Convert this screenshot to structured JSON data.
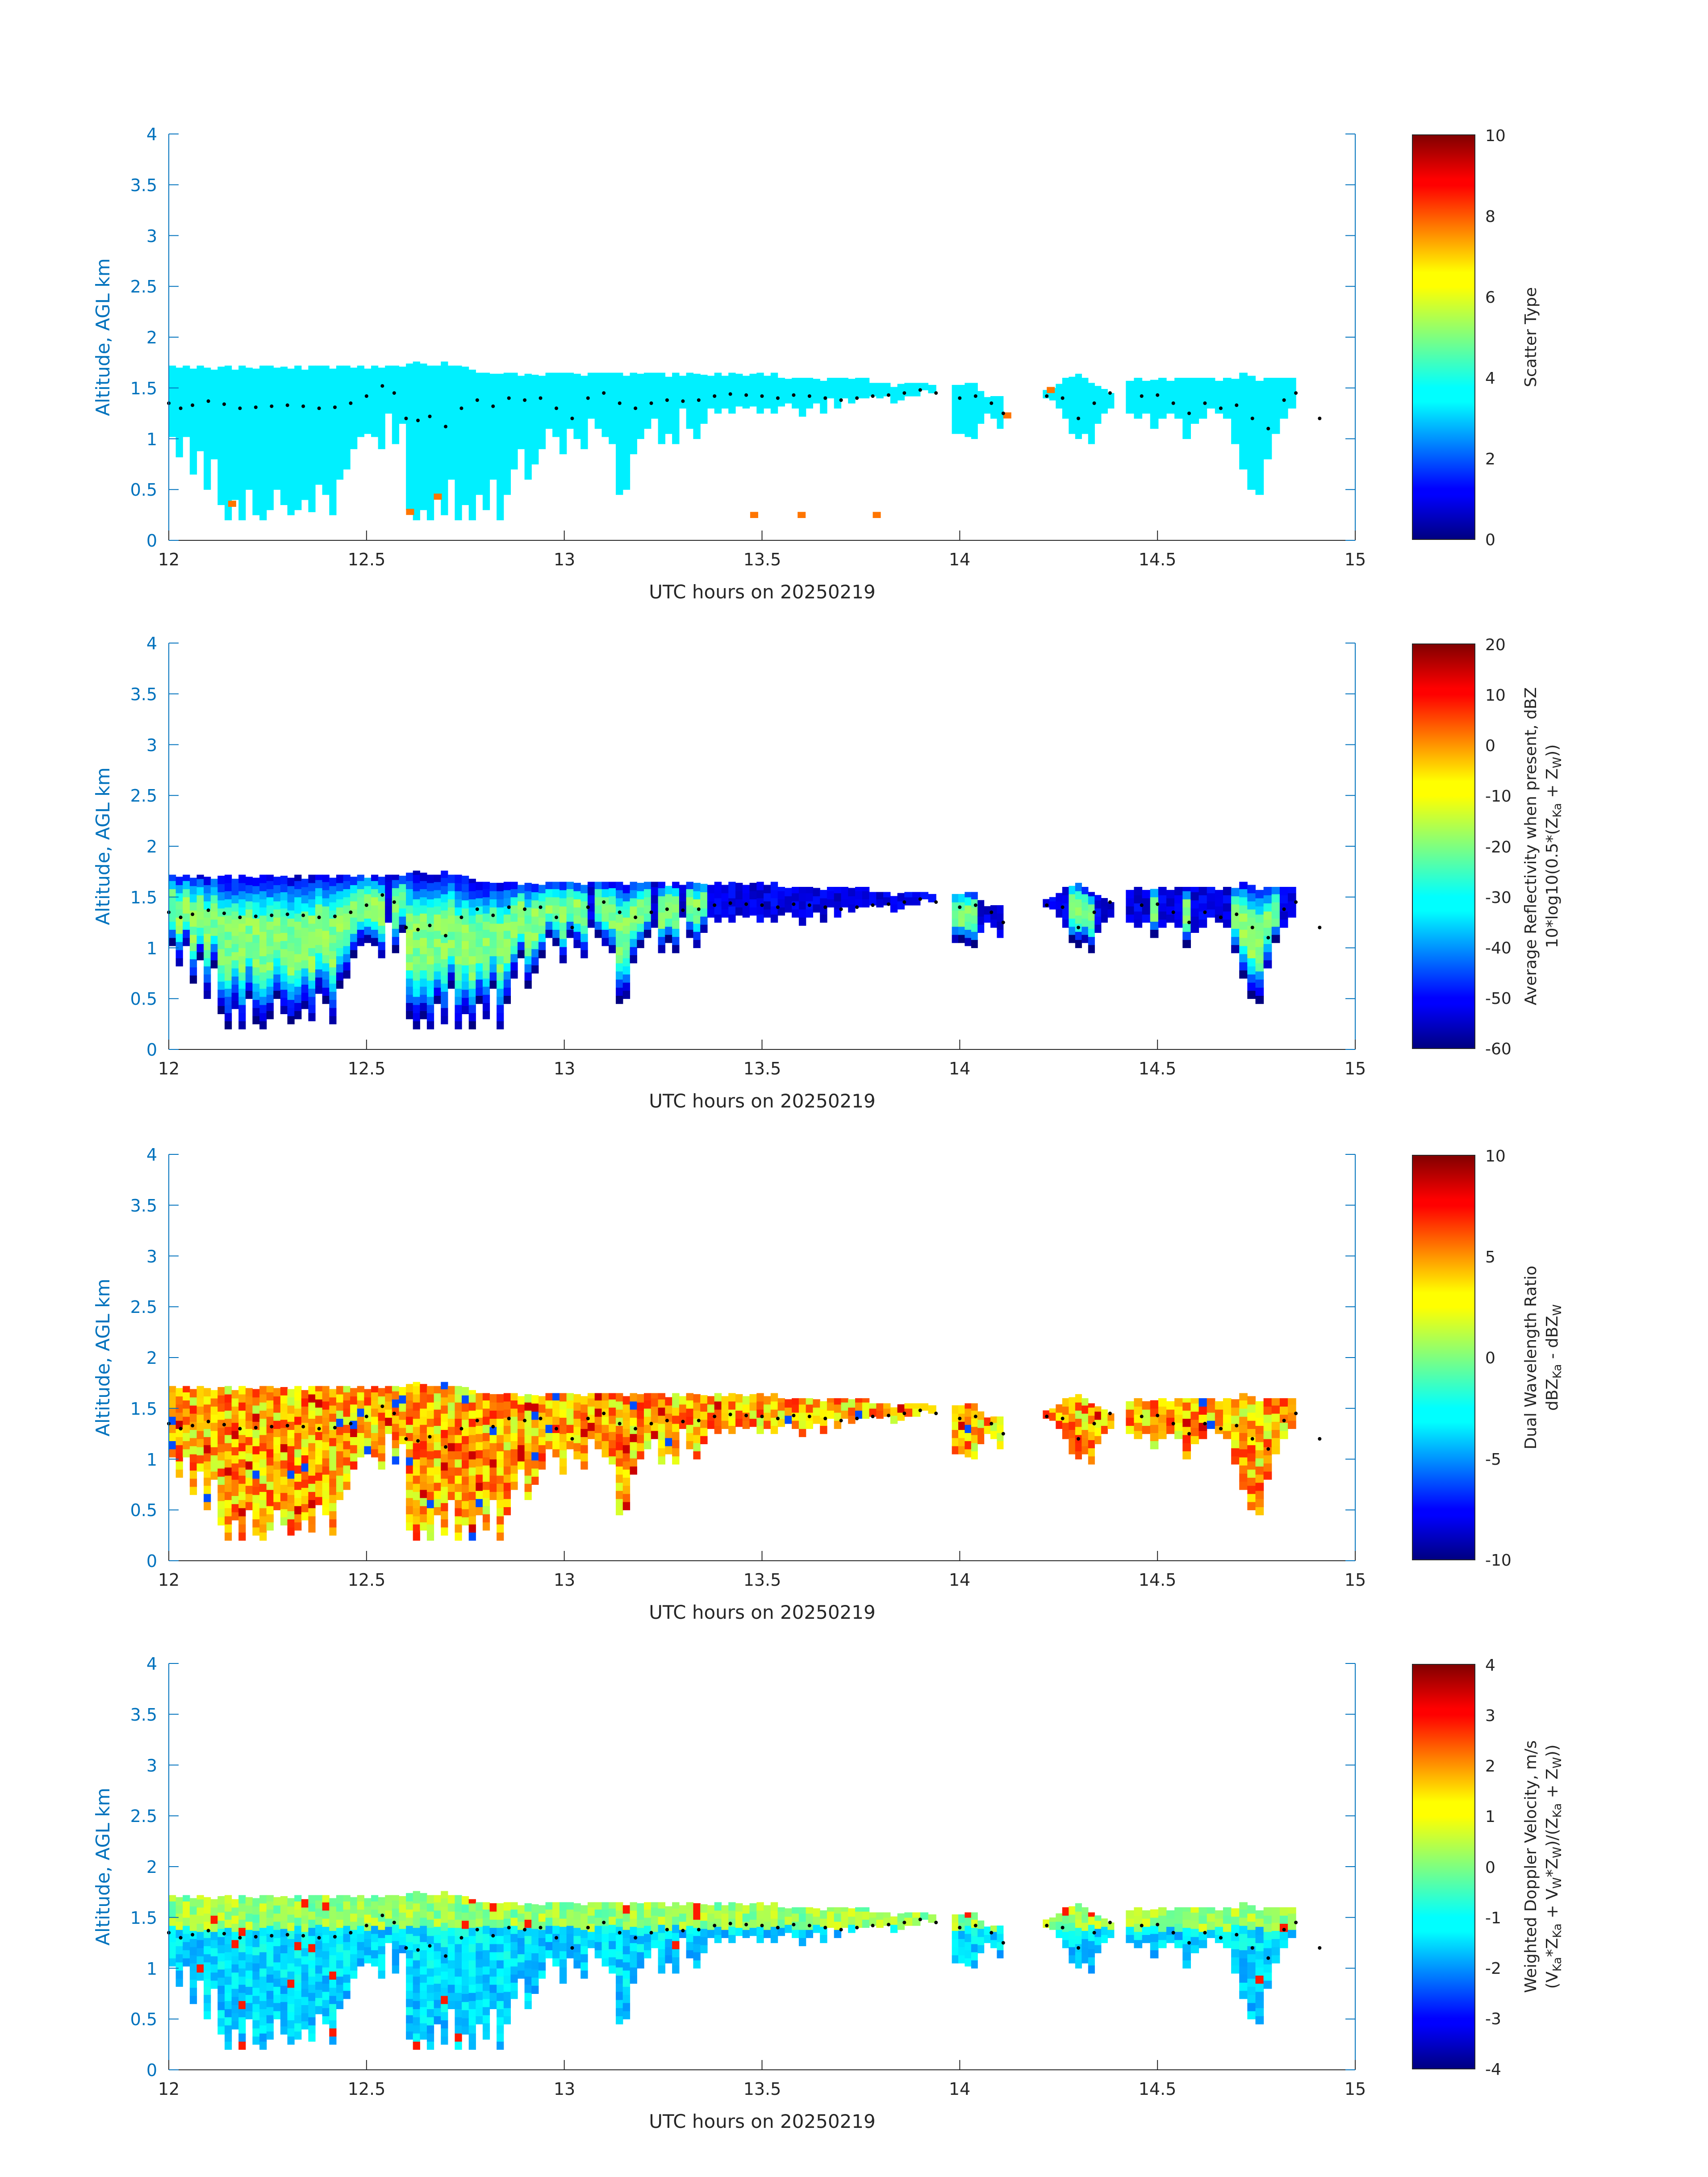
{
  "figure": {
    "xlabel": "UTC hours on 20250219",
    "ylabel": "Altitude, AGL km",
    "x_ticks": [
      "12",
      "12.5",
      "13",
      "13.5",
      "14",
      "14.5",
      "15"
    ],
    "y_ticks": [
      "0",
      "0.5",
      "1",
      "1.5",
      "2",
      "2.5",
      "3",
      "3.5",
      "4"
    ],
    "cb_labels": {
      "p1": "Scatter Type",
      "p2a": "Average Reflectivity when present, dBZ",
      "p2b_1": "10*log10(0.5*(Z",
      "p2b_2": "Ka",
      "p2b_3": " + Z",
      "p2b_4": "W",
      "p2b_5": "))",
      "p3a": "Dual Wavelength Ratio",
      "p3b_1": "dBZ",
      "p3b_2": "Ka",
      "p3b_3": " - dBZ",
      "p3b_4": "W",
      "p4a": "Weighted Doppler Velocity, m/s",
      "p4b_1": "(V",
      "p4b_2": "Ka",
      "p4b_3": "*Z",
      "p4b_4": "Ka",
      "p4b_5": " + V",
      "p4b_6": "W",
      "p4b_7": "*Z",
      "p4b_8": "W",
      "p4b_9": ")/(Z",
      "p4b_10": "Ka",
      "p4b_11": " + Z",
      "p4b_12": "W",
      "p4b_13": "))"
    }
  },
  "chart_data": [
    {
      "type": "heatmap",
      "panel": 1,
      "xlabel": "UTC hours on 20250219",
      "ylabel": "Altitude, AGL km",
      "xlim": [
        12,
        15
      ],
      "ylim": [
        0,
        4
      ],
      "colorbar": {
        "label": "Scatter Type",
        "range": [
          0,
          10
        ],
        "ticks": [
          "0",
          "2",
          "4",
          "6",
          "8",
          "10"
        ]
      },
      "dominant_value": 3.6,
      "occasional_value": 7.6,
      "occasional_value_points": [
        [
          12.15,
          0.33
        ],
        [
          12.6,
          0.25
        ],
        [
          12.67,
          0.4
        ],
        [
          13.47,
          0.22
        ],
        [
          13.59,
          0.22
        ],
        [
          13.78,
          0.22
        ],
        [
          14.11,
          1.2
        ],
        [
          14.22,
          1.45
        ]
      ]
    },
    {
      "type": "heatmap",
      "panel": 2,
      "xlabel": "UTC hours on 20250219",
      "ylabel": "Altitude, AGL km",
      "xlim": [
        12,
        15
      ],
      "ylim": [
        0,
        4
      ],
      "colorbar": {
        "range": [
          -60,
          20
        ],
        "ticks": [
          "-60",
          "-50",
          "-40",
          "-30",
          "-20",
          "-10",
          "0",
          "10",
          "20"
        ]
      },
      "value_range_observed": [
        -58,
        -18
      ]
    },
    {
      "type": "heatmap",
      "panel": 3,
      "xlabel": "UTC hours on 20250219",
      "ylabel": "Altitude, AGL km",
      "xlim": [
        12,
        15
      ],
      "ylim": [
        0,
        4
      ],
      "colorbar": {
        "range": [
          -10,
          10
        ],
        "ticks": [
          "-10",
          "-5",
          "0",
          "5",
          "10"
        ]
      },
      "value_range_observed": [
        -6,
        9
      ]
    },
    {
      "type": "heatmap",
      "panel": 4,
      "xlabel": "UTC hours on 20250219",
      "ylabel": "Altitude, AGL km",
      "xlim": [
        12,
        15
      ],
      "ylim": [
        0,
        4
      ],
      "colorbar": {
        "range": [
          -4,
          4
        ],
        "ticks": [
          "-4",
          "-3",
          "-2",
          "-1",
          "0",
          "1",
          "2",
          "3",
          "4"
        ]
      },
      "value_range_observed": [
        -2.5,
        3
      ]
    }
  ],
  "profile": {
    "segments": [
      {
        "x_start": 12.0,
        "x_end": 12.97,
        "top": 1.72,
        "bottoms": [
          1.02,
          0.82,
          1.02,
          0.65,
          0.88,
          0.5,
          0.8,
          0.35,
          0.2,
          0.4,
          0.2,
          0.5,
          0.25,
          0.2,
          0.3,
          0.5,
          0.35,
          0.25,
          0.3,
          0.4,
          0.28,
          0.55,
          0.45,
          0.25,
          0.6,
          0.7,
          0.9,
          1.02,
          1.05,
          1.02,
          0.9,
          1.25,
          0.95,
          1.15,
          0.3,
          0.2,
          0.3,
          0.2,
          0.45,
          0.25,
          0.6,
          0.2,
          0.35,
          0.2,
          0.45,
          0.3,
          0.6,
          0.2,
          0.45,
          0.7,
          0.9,
          0.6,
          0.75,
          0.9,
          1.1
        ],
        "tops": [
          1.72,
          1.72,
          1.72,
          1.72,
          1.72,
          1.72,
          1.72,
          1.72,
          1.72,
          1.72,
          1.72,
          1.72,
          1.72,
          1.72,
          1.72,
          1.72,
          1.72,
          1.72,
          1.72,
          1.72,
          1.72,
          1.72,
          1.72,
          1.72,
          1.72,
          1.72,
          1.72,
          1.72,
          1.72,
          1.72,
          1.72,
          1.72,
          1.72,
          1.72,
          1.76,
          1.76,
          1.76,
          1.72,
          1.72,
          1.76,
          1.72,
          1.72,
          1.72,
          1.68,
          1.65,
          1.65,
          1.65,
          1.65,
          1.65,
          1.65,
          1.65,
          1.65,
          1.65,
          1.65,
          1.65
        ]
      },
      {
        "x_start": 12.97,
        "x_end": 13.86,
        "top": 1.65,
        "bottoms": [
          1.02,
          0.85,
          1.1,
          1.0,
          0.9,
          1.2,
          1.1,
          1.02,
          0.95,
          0.45,
          0.5,
          0.85,
          1.0,
          1.1,
          1.2,
          0.95,
          1.05,
          0.95,
          1.3,
          1.1,
          1.0,
          1.15,
          1.3,
          1.25,
          1.3,
          1.25,
          1.32,
          1.3,
          1.32,
          1.25,
          1.3,
          1.25,
          1.32,
          1.35,
          1.3,
          1.22,
          1.3,
          1.35,
          1.25,
          1.4,
          1.3,
          1.4,
          1.35,
          1.4,
          1.4,
          1.42,
          1.4,
          1.42,
          1.35,
          1.38
        ],
        "tops": [
          1.65,
          1.65,
          1.65,
          1.65,
          1.65,
          1.65,
          1.65,
          1.65,
          1.65,
          1.65,
          1.65,
          1.65,
          1.65,
          1.65,
          1.65,
          1.65,
          1.65,
          1.65,
          1.65,
          1.65,
          1.65,
          1.65,
          1.65,
          1.65,
          1.65,
          1.65,
          1.65,
          1.65,
          1.65,
          1.65,
          1.65,
          1.65,
          1.6,
          1.6,
          1.6,
          1.6,
          1.6,
          1.6,
          1.6,
          1.6,
          1.6,
          1.6,
          1.6,
          1.6,
          1.6,
          1.55,
          1.55,
          1.55,
          1.55,
          1.55
        ]
      },
      {
        "x_start": 13.86,
        "x_end": 13.94,
        "top": 1.55,
        "bottoms": [
          1.42,
          1.42,
          1.48,
          1.45
        ],
        "tops": [
          1.55,
          1.55,
          1.55,
          1.55
        ]
      },
      {
        "x_start": 13.98,
        "x_end": 14.11,
        "top": 1.55,
        "bottoms": [
          1.05,
          1.05,
          1.02,
          1.0,
          1.15,
          1.25,
          1.2,
          1.1
        ],
        "tops": [
          1.55,
          1.55,
          1.55,
          1.55,
          1.5,
          1.42,
          1.42,
          1.42
        ]
      },
      {
        "x_start": 14.21,
        "x_end": 14.39,
        "top": 1.65,
        "bottoms": [
          1.4,
          1.38,
          1.3,
          1.2,
          1.05,
          1.0,
          1.05,
          0.95,
          1.15,
          1.25,
          1.3
        ],
        "tops": [
          1.5,
          1.5,
          1.55,
          1.6,
          1.65,
          1.65,
          1.6,
          1.55,
          1.52,
          1.5,
          1.45
        ]
      },
      {
        "x_start": 14.42,
        "x_end": 14.85,
        "top": 1.65,
        "bottoms": [
          1.25,
          1.2,
          1.25,
          1.1,
          1.2,
          1.25,
          1.2,
          1.0,
          1.15,
          1.2,
          1.3,
          1.25,
          1.2,
          0.95,
          0.7,
          0.5,
          0.45,
          0.8,
          1.05,
          1.2,
          1.3
        ],
        "tops": [
          1.6,
          1.6,
          1.6,
          1.6,
          1.6,
          1.6,
          1.6,
          1.6,
          1.6,
          1.6,
          1.6,
          1.6,
          1.6,
          1.6,
          1.65,
          1.65,
          1.6,
          1.6,
          1.6,
          1.6,
          1.6
        ]
      }
    ],
    "melting_layer": [
      [
        12.0,
        1.35
      ],
      [
        12.03,
        1.3
      ],
      [
        12.06,
        1.33
      ],
      [
        12.1,
        1.37
      ],
      [
        12.14,
        1.34
      ],
      [
        12.18,
        1.3
      ],
      [
        12.22,
        1.31
      ],
      [
        12.26,
        1.32
      ],
      [
        12.3,
        1.33
      ],
      [
        12.34,
        1.32
      ],
      [
        12.38,
        1.3
      ],
      [
        12.42,
        1.31
      ],
      [
        12.46,
        1.35
      ],
      [
        12.5,
        1.42
      ],
      [
        12.54,
        1.52
      ],
      [
        12.57,
        1.45
      ],
      [
        12.6,
        1.2
      ],
      [
        12.63,
        1.18
      ],
      [
        12.66,
        1.22
      ],
      [
        12.7,
        1.12
      ],
      [
        12.74,
        1.3
      ],
      [
        12.78,
        1.38
      ],
      [
        12.82,
        1.32
      ],
      [
        12.86,
        1.4
      ],
      [
        12.9,
        1.38
      ],
      [
        12.94,
        1.4
      ],
      [
        12.98,
        1.3
      ],
      [
        13.02,
        1.2
      ],
      [
        13.06,
        1.4
      ],
      [
        13.1,
        1.45
      ],
      [
        13.14,
        1.35
      ],
      [
        13.18,
        1.3
      ],
      [
        13.22,
        1.35
      ],
      [
        13.26,
        1.38
      ],
      [
        13.3,
        1.37
      ],
      [
        13.34,
        1.38
      ],
      [
        13.38,
        1.42
      ],
      [
        13.42,
        1.44
      ],
      [
        13.46,
        1.43
      ],
      [
        13.5,
        1.42
      ],
      [
        13.54,
        1.4
      ],
      [
        13.58,
        1.43
      ],
      [
        13.62,
        1.42
      ],
      [
        13.66,
        1.4
      ],
      [
        13.7,
        1.38
      ],
      [
        13.74,
        1.4
      ],
      [
        13.78,
        1.42
      ],
      [
        13.82,
        1.43
      ],
      [
        13.86,
        1.45
      ],
      [
        13.9,
        1.48
      ],
      [
        13.94,
        1.45
      ],
      [
        14.0,
        1.4
      ],
      [
        14.04,
        1.42
      ],
      [
        14.08,
        1.35
      ],
      [
        14.11,
        1.25
      ],
      [
        14.22,
        1.42
      ],
      [
        14.26,
        1.4
      ],
      [
        14.3,
        1.2
      ],
      [
        14.34,
        1.35
      ],
      [
        14.38,
        1.45
      ],
      [
        14.46,
        1.42
      ],
      [
        14.5,
        1.43
      ],
      [
        14.54,
        1.35
      ],
      [
        14.58,
        1.25
      ],
      [
        14.62,
        1.35
      ],
      [
        14.66,
        1.3
      ],
      [
        14.7,
        1.33
      ],
      [
        14.74,
        1.2
      ],
      [
        14.78,
        1.1
      ],
      [
        14.82,
        1.38
      ],
      [
        14.85,
        1.45
      ],
      [
        14.91,
        1.2
      ]
    ]
  },
  "colors": {
    "axis": "#0072BD",
    "text": "#262626",
    "melting_layer_dots": "#000000",
    "scatter_type_dominant": "#2CFFD3"
  }
}
